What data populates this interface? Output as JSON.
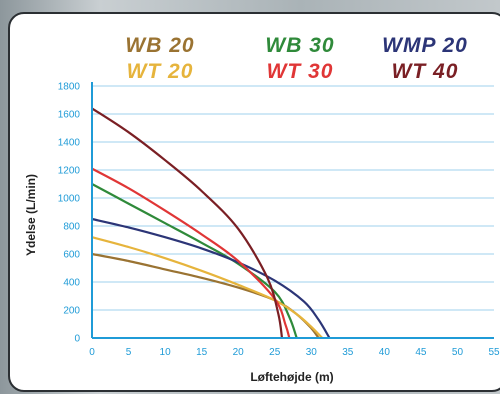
{
  "chart_data": {
    "type": "line",
    "xlabel": "Løftehøjde (m)",
    "ylabel": "Ydelse (L/min)",
    "xlim": [
      0,
      55
    ],
    "ylim": [
      0,
      1800
    ],
    "x_ticks": [
      "0",
      "5",
      "10",
      "15",
      "20",
      "25",
      "30",
      "35",
      "40",
      "45",
      "50",
      "55"
    ],
    "y_ticks": [
      "0",
      "200",
      "400",
      "600",
      "800",
      "1000",
      "1200",
      "1400",
      "1600",
      "1800"
    ],
    "grid": "horizontal",
    "legend_position": "top",
    "series": [
      {
        "name": "WB 20",
        "color": "#9a7332",
        "x": [
          0,
          5,
          10,
          15,
          20,
          25,
          28,
          30,
          31
        ],
        "y": [
          600,
          550,
          490,
          430,
          360,
          270,
          170,
          70,
          0
        ]
      },
      {
        "name": "WB 30",
        "color": "#2f8a3a",
        "x": [
          0,
          5,
          10,
          15,
          20,
          25,
          27,
          28
        ],
        "y": [
          1100,
          960,
          820,
          680,
          530,
          330,
          150,
          0
        ]
      },
      {
        "name": "WMP 20",
        "color": "#2c3577",
        "x": [
          0,
          5,
          10,
          15,
          20,
          25,
          29,
          31,
          32.5
        ],
        "y": [
          850,
          790,
          720,
          640,
          540,
          410,
          260,
          130,
          0
        ]
      },
      {
        "name": "WT 20",
        "color": "#e6b43c",
        "x": [
          0,
          5,
          10,
          15,
          20,
          25,
          28,
          30,
          31.5
        ],
        "y": [
          720,
          650,
          570,
          480,
          380,
          270,
          170,
          80,
          0
        ]
      },
      {
        "name": "WT 30",
        "color": "#e03636",
        "x": [
          0,
          5,
          10,
          15,
          20,
          25,
          26.5,
          27
        ],
        "y": [
          1210,
          1070,
          910,
          740,
          550,
          280,
          90,
          0
        ]
      },
      {
        "name": "WT 40",
        "color": "#7a1f24",
        "x": [
          0,
          5,
          10,
          15,
          20,
          24,
          25.5,
          26
        ],
        "y": [
          1640,
          1470,
          1270,
          1050,
          780,
          430,
          170,
          0
        ]
      }
    ]
  }
}
